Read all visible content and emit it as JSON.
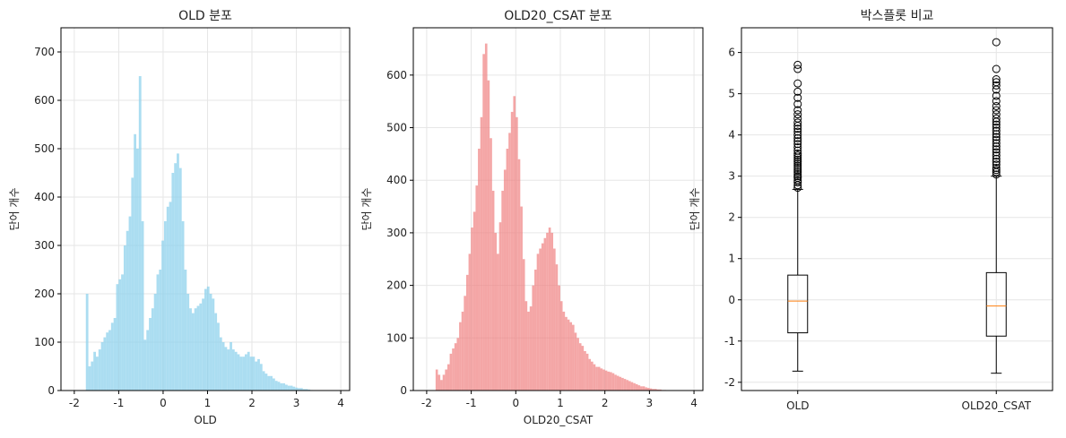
{
  "chart_data": [
    {
      "type": "bar",
      "subtype": "histogram",
      "title": "OLD 분포",
      "xlabel": "OLD",
      "ylabel": "단어 개수",
      "xlim": [
        -2.3,
        4.2
      ],
      "ylim": [
        0,
        750
      ],
      "xticks": [
        -2,
        -1,
        0,
        1,
        2,
        3,
        4
      ],
      "xtick_labels": [
        "-2",
        "-1",
        "0",
        "1",
        "2",
        "3",
        "4"
      ],
      "yticks": [
        0,
        100,
        200,
        300,
        400,
        500,
        600,
        700
      ],
      "ytick_labels": [
        "0",
        "100",
        "200",
        "300",
        "400",
        "500",
        "600",
        "700"
      ],
      "grid": true,
      "color": "#87ceeb",
      "bin_start": -1.74,
      "bin_width": 0.0568,
      "values": [
        200,
        50,
        60,
        80,
        70,
        85,
        100,
        110,
        120,
        125,
        140,
        150,
        220,
        230,
        240,
        300,
        330,
        360,
        440,
        530,
        500,
        650,
        350,
        105,
        125,
        150,
        170,
        200,
        240,
        250,
        310,
        350,
        380,
        390,
        450,
        470,
        490,
        460,
        350,
        250,
        200,
        170,
        160,
        170,
        175,
        180,
        190,
        210,
        215,
        200,
        190,
        160,
        140,
        110,
        100,
        90,
        85,
        100,
        85,
        80,
        75,
        70,
        70,
        75,
        80,
        70,
        70,
        60,
        65,
        55,
        40,
        35,
        30,
        30,
        25,
        20,
        18,
        15,
        15,
        12,
        10,
        10,
        8,
        6,
        5,
        5,
        3,
        3,
        2,
        1
      ]
    },
    {
      "type": "bar",
      "subtype": "histogram",
      "title": "OLD20_CSAT 분포",
      "xlabel": "OLD20_CSAT",
      "ylabel": "단어 개수",
      "xlim": [
        -2.3,
        4.2
      ],
      "ylim": [
        0,
        690
      ],
      "xticks": [
        -2,
        -1,
        0,
        1,
        2,
        3,
        4
      ],
      "xtick_labels": [
        "-2",
        "-1",
        "0",
        "1",
        "2",
        "3",
        "4"
      ],
      "yticks": [
        0,
        100,
        200,
        300,
        400,
        500,
        600
      ],
      "ytick_labels": [
        "0",
        "100",
        "200",
        "300",
        "400",
        "500",
        "600"
      ],
      "grid": true,
      "color": "#f08080",
      "bin_start": -1.8,
      "bin_width": 0.0528,
      "values": [
        40,
        30,
        20,
        30,
        40,
        50,
        70,
        80,
        90,
        100,
        130,
        150,
        180,
        220,
        260,
        310,
        340,
        390,
        460,
        520,
        640,
        660,
        590,
        480,
        380,
        300,
        260,
        320,
        380,
        420,
        460,
        490,
        530,
        560,
        520,
        440,
        350,
        250,
        170,
        150,
        160,
        200,
        230,
        260,
        270,
        280,
        290,
        300,
        310,
        300,
        270,
        240,
        200,
        170,
        150,
        140,
        135,
        130,
        125,
        110,
        100,
        90,
        85,
        75,
        70,
        60,
        55,
        50,
        45,
        45,
        42,
        40,
        38,
        36,
        35,
        33,
        30,
        28,
        26,
        24,
        22,
        20,
        18,
        16,
        14,
        12,
        10,
        8,
        8,
        6,
        5,
        4,
        3,
        3,
        2,
        2,
        1,
        1
      ]
    },
    {
      "type": "boxplot",
      "title": "박스플롯 비교",
      "ylabel": "단어 개수",
      "ylim": [
        -2.2,
        6.6
      ],
      "yticks": [
        -2,
        -1,
        0,
        1,
        2,
        3,
        4,
        5,
        6
      ],
      "ytick_labels": [
        "-2",
        "-1",
        "0",
        "1",
        "2",
        "3",
        "4",
        "5",
        "6"
      ],
      "grid": true,
      "median_color": "#ff7f0e",
      "categories": [
        "OLD",
        "OLD20_CSAT"
      ],
      "boxes": [
        {
          "whisker_low": -1.73,
          "q1": -0.8,
          "median": -0.03,
          "q3": 0.6,
          "whisker_high": 2.68,
          "outliers": [
            2.72,
            2.78,
            2.85,
            2.9,
            2.96,
            3.0,
            3.05,
            3.1,
            3.15,
            3.2,
            3.25,
            3.3,
            3.35,
            3.4,
            3.45,
            3.5,
            3.55,
            3.62,
            3.7,
            3.78,
            3.85,
            3.92,
            4.0,
            4.08,
            4.15,
            4.22,
            4.3,
            4.4,
            4.5,
            4.6,
            4.75,
            4.9,
            5.05,
            5.25,
            5.6,
            5.7
          ]
        },
        {
          "whisker_low": -1.78,
          "q1": -0.88,
          "median": -0.15,
          "q3": 0.66,
          "whisker_high": 3.0,
          "outliers": [
            3.04,
            3.1,
            3.15,
            3.2,
            3.28,
            3.35,
            3.42,
            3.5,
            3.58,
            3.65,
            3.72,
            3.8,
            3.88,
            3.95,
            4.02,
            4.1,
            4.18,
            4.25,
            4.32,
            4.4,
            4.5,
            4.6,
            4.7,
            4.82,
            4.95,
            5.1,
            5.2,
            5.28,
            5.35,
            5.6,
            6.25
          ]
        }
      ]
    }
  ]
}
